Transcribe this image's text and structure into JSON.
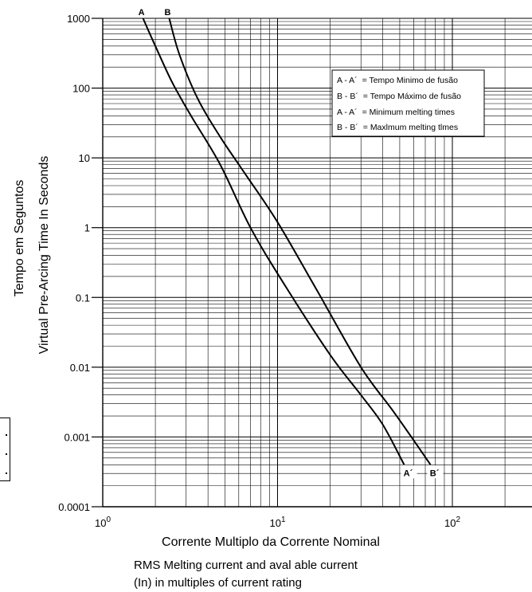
{
  "chart_data": {
    "type": "line",
    "x_scale": "log",
    "y_scale": "log",
    "xlim": [
      1,
      240
    ],
    "ylim": [
      0.0001,
      1000
    ],
    "grid": true,
    "x_ticks": [
      {
        "value": 1,
        "base": "10",
        "exp": "0"
      },
      {
        "value": 10,
        "base": "10",
        "exp": "1"
      },
      {
        "value": 100,
        "base": "10",
        "exp": "2"
      }
    ],
    "y_ticks": [
      {
        "value": 1000,
        "label": "1000"
      },
      {
        "value": 100,
        "label": "100"
      },
      {
        "value": 10,
        "label": "10"
      },
      {
        "value": 1,
        "label": "1"
      },
      {
        "value": 0.1,
        "label": "0.1"
      },
      {
        "value": 0.01,
        "label": "0.01"
      },
      {
        "value": 0.001,
        "label": "0.001"
      },
      {
        "value": 0.0001,
        "label": "0.0001"
      }
    ],
    "xlabel_lines": [
      "Corrente Multiplo da Corrente Nominal",
      "RMS Melting current and aval able current",
      "(In) in multiples of current rating"
    ],
    "ylabel_lines": [
      "Tempo em Seguntos",
      "Virtual Pre-Arcing Time  In Seconds"
    ],
    "series": [
      {
        "id": "A",
        "start_label": "A",
        "end_label": "A´",
        "points": [
          [
            1.7,
            1000
          ],
          [
            2.0,
            400
          ],
          [
            2.5,
            120
          ],
          [
            3.2,
            40
          ],
          [
            4.7,
            8
          ],
          [
            7.0,
            1
          ],
          [
            11.0,
            0.15
          ],
          [
            20.0,
            0.015
          ],
          [
            30.0,
            0.004
          ],
          [
            40.0,
            0.0015
          ],
          [
            53.0,
            0.0004
          ]
        ]
      },
      {
        "id": "B",
        "start_label": "B",
        "end_label": "B´",
        "points": [
          [
            2.4,
            1000
          ],
          [
            2.75,
            300
          ],
          [
            3.5,
            70
          ],
          [
            4.7,
            20
          ],
          [
            6.5,
            6
          ],
          [
            10.0,
            1.2
          ],
          [
            17.0,
            0.12
          ],
          [
            30.0,
            0.01
          ],
          [
            45.0,
            0.0025
          ],
          [
            60.0,
            0.0009
          ],
          [
            75.0,
            0.0004
          ]
        ]
      }
    ],
    "legend": {
      "placement": "top-right",
      "entries": [
        {
          "key": "A - A´",
          "text": "= Tempo Minimo de fusão"
        },
        {
          "key": "B - B´",
          "text": "= Tempo Máximo de fusão"
        },
        {
          "key": "A - A´",
          "text": "= Minimum melting times"
        },
        {
          "key": "B - B´",
          "text": "= Maxlmum melting tlmes"
        }
      ]
    }
  }
}
